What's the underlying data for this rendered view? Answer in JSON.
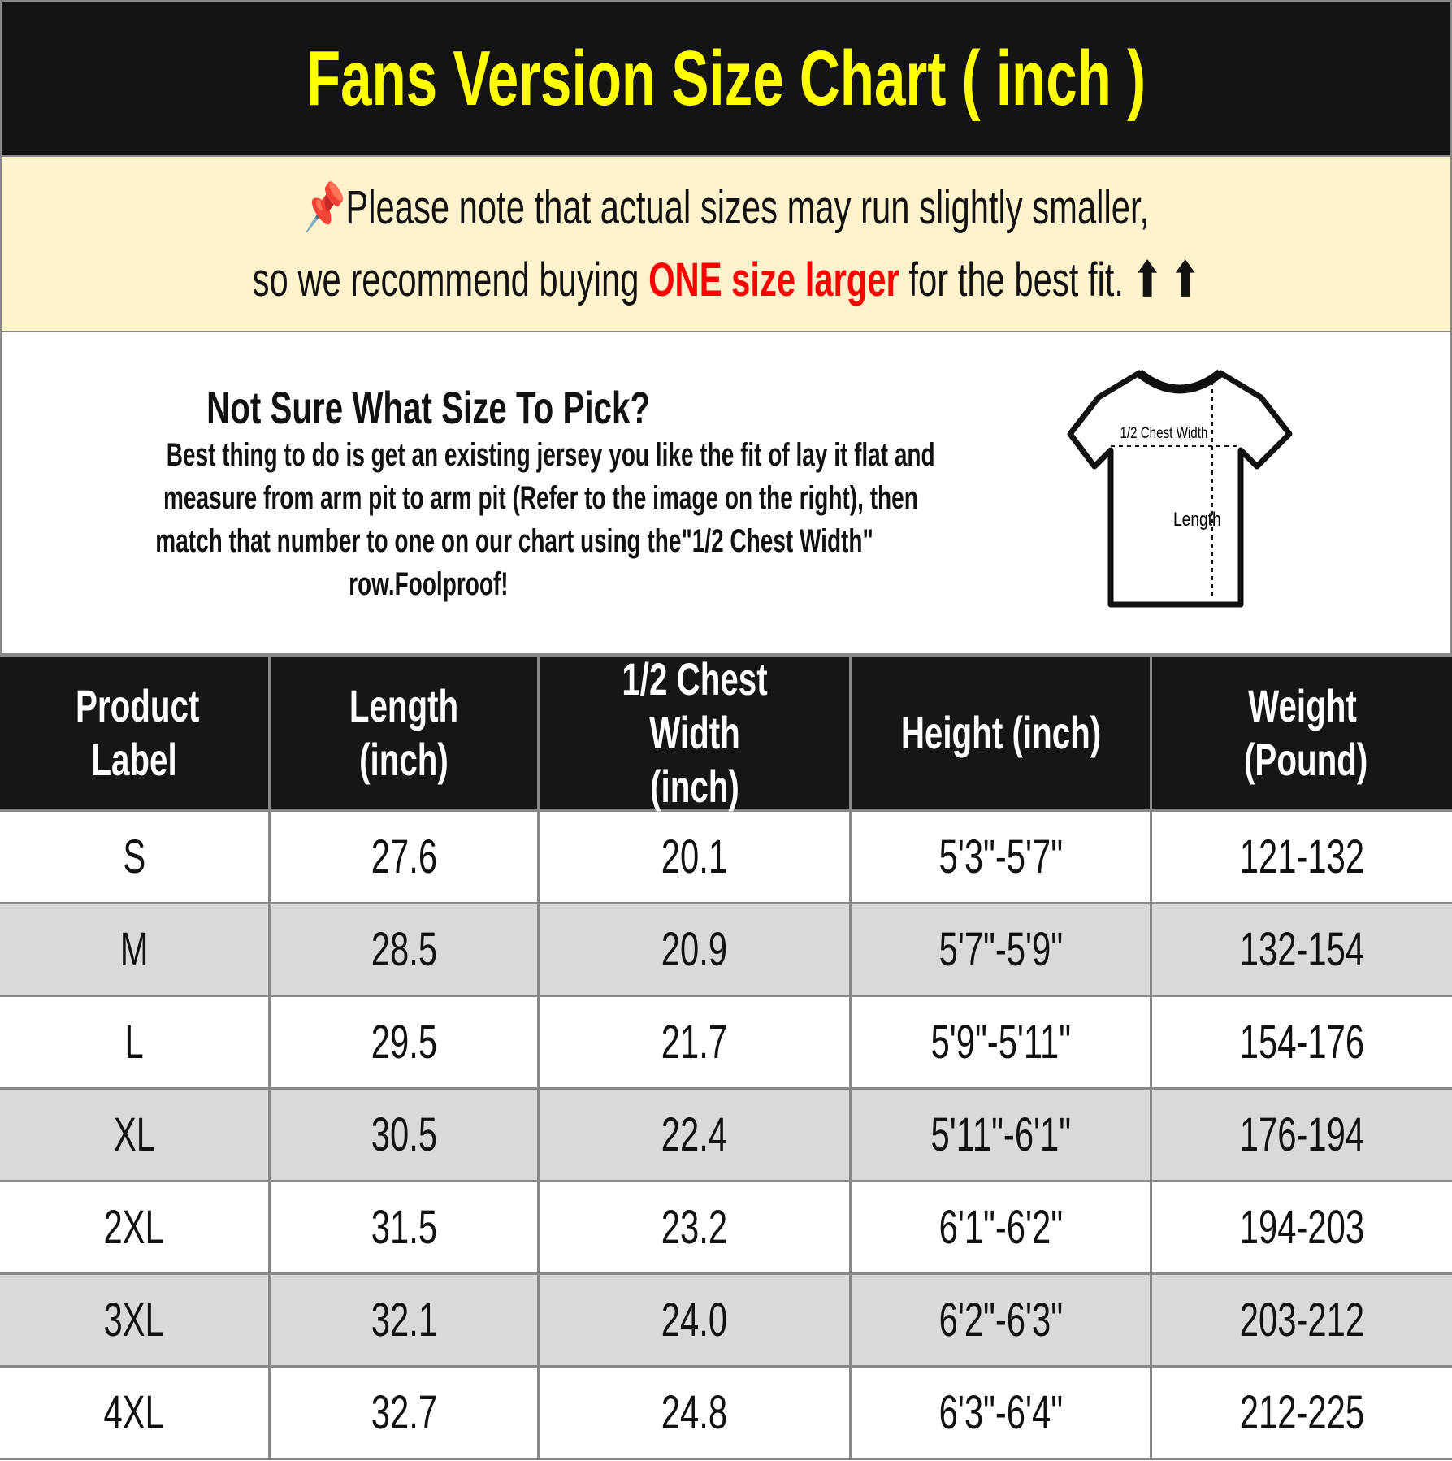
{
  "title": "Fans Version Size Chart ( inch )",
  "note": {
    "line1": "Please note that actual sizes may run slightly smaller,",
    "line2_before": "so we recommend buying ",
    "line2_highlight": "ONE size larger",
    "line2_after": " for the best fit.",
    "arrows": "⬆ ⬆",
    "pin_icon": "pushpin-icon",
    "highlight_color": "#ff0000"
  },
  "info": {
    "heading": "Not Sure What Size To Pick?",
    "lines": [
      "Best thing to do is get an existing jersey you like the fit of lay it flat and",
      "measure from arm pit to arm pit (Refer to the image on the right), then",
      "match that number to one on our chart using the\"1/2 Chest Width\"",
      "row.Foolproof!"
    ],
    "diagram": {
      "chest_label": "1/2 Chest Width",
      "length_label": "Length"
    }
  },
  "table": {
    "headers": [
      "Product Label",
      "Length (inch)",
      "1/2 Chest Width (inch)",
      "Height (inch)",
      "Weight (Pound)"
    ],
    "rows": [
      [
        "S",
        "27.6",
        "20.1",
        "5'3\"-5'7\"",
        "121-132"
      ],
      [
        "M",
        "28.5",
        "20.9",
        "5'7\"-5'9\"",
        "132-154"
      ],
      [
        "L",
        "29.5",
        "21.7",
        "5'9\"-5'11\"",
        "154-176"
      ],
      [
        "XL",
        "30.5",
        "22.4",
        "5'11\"-6'1\"",
        "176-194"
      ],
      [
        "2XL",
        "31.5",
        "23.2",
        "6'1\"-6'2\"",
        "194-203"
      ],
      [
        "3XL",
        "32.1",
        "24.0",
        "6'2\"-6'3\"",
        "203-212"
      ],
      [
        "4XL",
        "32.7",
        "24.8",
        "6'3\"-6'4\"",
        "212-225"
      ]
    ]
  },
  "colors": {
    "title_bg": "#141414",
    "title_text": "#ffff00",
    "note_bg": "#fff2cc",
    "alt_row": "#d9d9d9"
  }
}
